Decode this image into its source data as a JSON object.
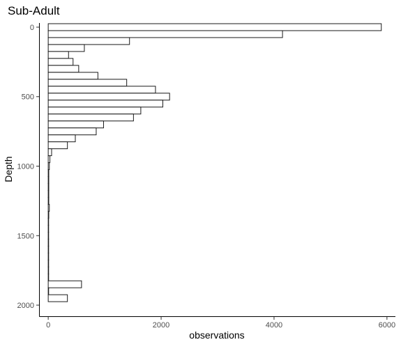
{
  "chart_data": {
    "type": "bar",
    "orientation": "horizontal",
    "title": "Sub-Adult",
    "xlabel": "observations",
    "ylabel": "Depth",
    "xlim": [
      -150,
      6150
    ],
    "ylim": [
      -30,
      2080
    ],
    "x_reversed": false,
    "y_reversed": true,
    "bin_width": 50,
    "grid": false,
    "legend": "none",
    "bar_fill": "#ffffff",
    "bar_outline": "#1a1a1a",
    "x_ticks": [
      {
        "value": 0,
        "label": "0"
      },
      {
        "value": 2000,
        "label": "2000"
      },
      {
        "value": 4000,
        "label": "4000"
      },
      {
        "value": 6000,
        "label": "6000"
      }
    ],
    "y_ticks": [
      {
        "value": 0,
        "label": "0"
      },
      {
        "value": 500,
        "label": "500"
      },
      {
        "value": 1000,
        "label": "1000"
      },
      {
        "value": 1500,
        "label": "1500"
      },
      {
        "value": 2000,
        "label": "2000"
      }
    ],
    "bins": [
      {
        "depth": 0,
        "value": 5900
      },
      {
        "depth": 50,
        "value": 4150
      },
      {
        "depth": 100,
        "value": 1440
      },
      {
        "depth": 150,
        "value": 640
      },
      {
        "depth": 200,
        "value": 360
      },
      {
        "depth": 250,
        "value": 440
      },
      {
        "depth": 300,
        "value": 540
      },
      {
        "depth": 350,
        "value": 880
      },
      {
        "depth": 400,
        "value": 1390
      },
      {
        "depth": 450,
        "value": 1900
      },
      {
        "depth": 500,
        "value": 2150
      },
      {
        "depth": 550,
        "value": 2030
      },
      {
        "depth": 600,
        "value": 1640
      },
      {
        "depth": 650,
        "value": 1510
      },
      {
        "depth": 700,
        "value": 980
      },
      {
        "depth": 750,
        "value": 850
      },
      {
        "depth": 800,
        "value": 480
      },
      {
        "depth": 850,
        "value": 340
      },
      {
        "depth": 900,
        "value": 60
      },
      {
        "depth": 950,
        "value": 30
      },
      {
        "depth": 1000,
        "value": 20
      },
      {
        "depth": 1050,
        "value": 10
      },
      {
        "depth": 1100,
        "value": 10
      },
      {
        "depth": 1150,
        "value": 10
      },
      {
        "depth": 1200,
        "value": 10
      },
      {
        "depth": 1250,
        "value": 10
      },
      {
        "depth": 1300,
        "value": 20
      },
      {
        "depth": 1350,
        "value": 10
      },
      {
        "depth": 1400,
        "value": 5
      },
      {
        "depth": 1450,
        "value": 5
      },
      {
        "depth": 1500,
        "value": 5
      },
      {
        "depth": 1550,
        "value": 5
      },
      {
        "depth": 1600,
        "value": 5
      },
      {
        "depth": 1650,
        "value": 5
      },
      {
        "depth": 1700,
        "value": 5
      },
      {
        "depth": 1750,
        "value": 5
      },
      {
        "depth": 1800,
        "value": 5
      },
      {
        "depth": 1850,
        "value": 590
      },
      {
        "depth": 1900,
        "value": 5
      },
      {
        "depth": 1950,
        "value": 340
      }
    ]
  }
}
